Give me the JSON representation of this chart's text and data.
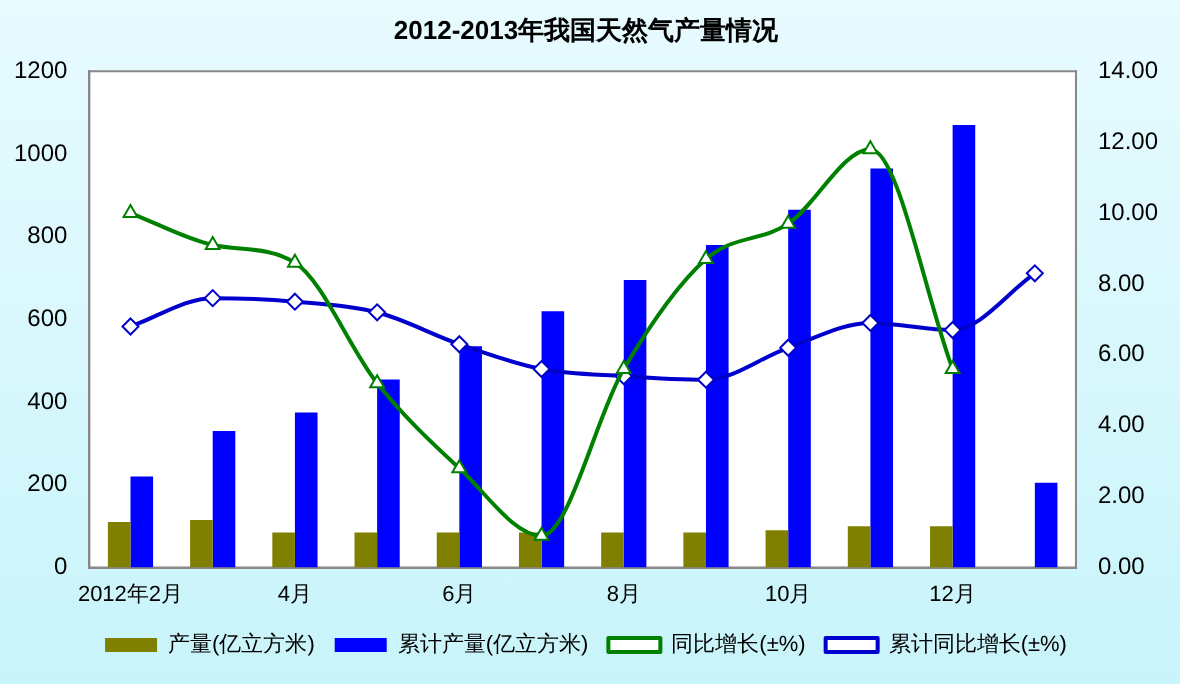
{
  "chart_data": {
    "type": "bar",
    "title": "2012-2013年我国天然气产量情况",
    "categories": [
      "2012年2月",
      null,
      "4月",
      null,
      "6月",
      null,
      "8月",
      null,
      "10月",
      null,
      "12月",
      null
    ],
    "series": [
      {
        "name": "产量(亿立方米)",
        "color": "#808000",
        "values": [
          110,
          115,
          85,
          85,
          85,
          85,
          85,
          85,
          90,
          100,
          100,
          null
        ]
      },
      {
        "name": "累计产量(亿立方米)",
        "color": "#0000ff",
        "values": [
          220,
          330,
          375,
          455,
          535,
          620,
          695,
          780,
          865,
          965,
          1070,
          205
        ]
      },
      {
        "name": "同比增长(±%)",
        "type": "line",
        "axis": "y2",
        "marker": "triangle",
        "color": "#008000",
        "values": [
          10.0,
          9.1,
          8.6,
          5.2,
          2.8,
          0.9,
          5.6,
          8.7,
          9.7,
          11.8,
          5.6,
          null
        ]
      },
      {
        "name": "累计同比增长(±%)",
        "type": "line",
        "axis": "y2",
        "marker": "diamond",
        "color": "#0000cc",
        "values": [
          6.8,
          7.6,
          7.5,
          7.2,
          6.3,
          5.6,
          5.4,
          5.3,
          6.2,
          6.9,
          6.7,
          8.3
        ]
      }
    ],
    "ylim": [
      0,
      1200
    ],
    "yticks": [
      0,
      200,
      400,
      600,
      800,
      1000,
      1200
    ],
    "y2lim": [
      0,
      14
    ],
    "y2ticks": [
      {
        "value": 0,
        "label": "0.00"
      },
      {
        "value": 2,
        "label": "2.00"
      },
      {
        "value": 4,
        "label": "4.00"
      },
      {
        "value": 6,
        "label": "6.00"
      },
      {
        "value": 8,
        "label": "8.00"
      },
      {
        "value": 10,
        "label": "10.00"
      },
      {
        "value": 12,
        "label": "12.00"
      },
      {
        "value": 14,
        "label": "14.00"
      }
    ],
    "grid": false,
    "legend": "bottom"
  }
}
